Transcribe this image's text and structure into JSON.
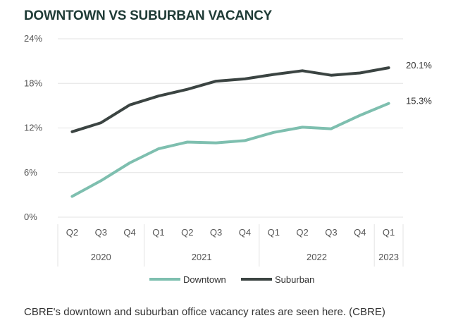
{
  "colors": {
    "downtown": "#7ebfaf",
    "suburban": "#3b4442",
    "grid": "#e3e3e3",
    "title": "#1f3b36"
  },
  "caption": "CBRE's downtown and suburban office vacancy rates are seen here. (CBRE)",
  "chart_data": {
    "type": "line",
    "title": "DOWNTOWN VS SUBURBAN VACANCY",
    "categories": [
      "Q2",
      "Q3",
      "Q4",
      "Q1",
      "Q2",
      "Q3",
      "Q4",
      "Q1",
      "Q2",
      "Q3",
      "Q4",
      "Q1"
    ],
    "years": [
      {
        "label": "2020",
        "count": 3
      },
      {
        "label": "2021",
        "count": 4
      },
      {
        "label": "2022",
        "count": 4
      },
      {
        "label": "2023",
        "count": 1
      }
    ],
    "y_ticks": [
      0,
      6,
      12,
      18,
      24
    ],
    "y_tick_labels": [
      "0%",
      "6%",
      "12%",
      "18%",
      "24%"
    ],
    "ylim": [
      0,
      24
    ],
    "grid": true,
    "legend": "bottom",
    "series": [
      {
        "name": "Downtown",
        "color": "#7ebfaf",
        "values": [
          2.8,
          4.9,
          7.3,
          9.2,
          10.1,
          10.0,
          10.3,
          11.4,
          12.1,
          11.9,
          13.7,
          15.3
        ],
        "end_label": "15.3%"
      },
      {
        "name": "Suburban",
        "color": "#3b4442",
        "values": [
          11.5,
          12.7,
          15.1,
          16.3,
          17.2,
          18.3,
          18.6,
          19.2,
          19.7,
          19.1,
          19.4,
          20.1
        ],
        "end_label": "20.1%"
      }
    ]
  }
}
